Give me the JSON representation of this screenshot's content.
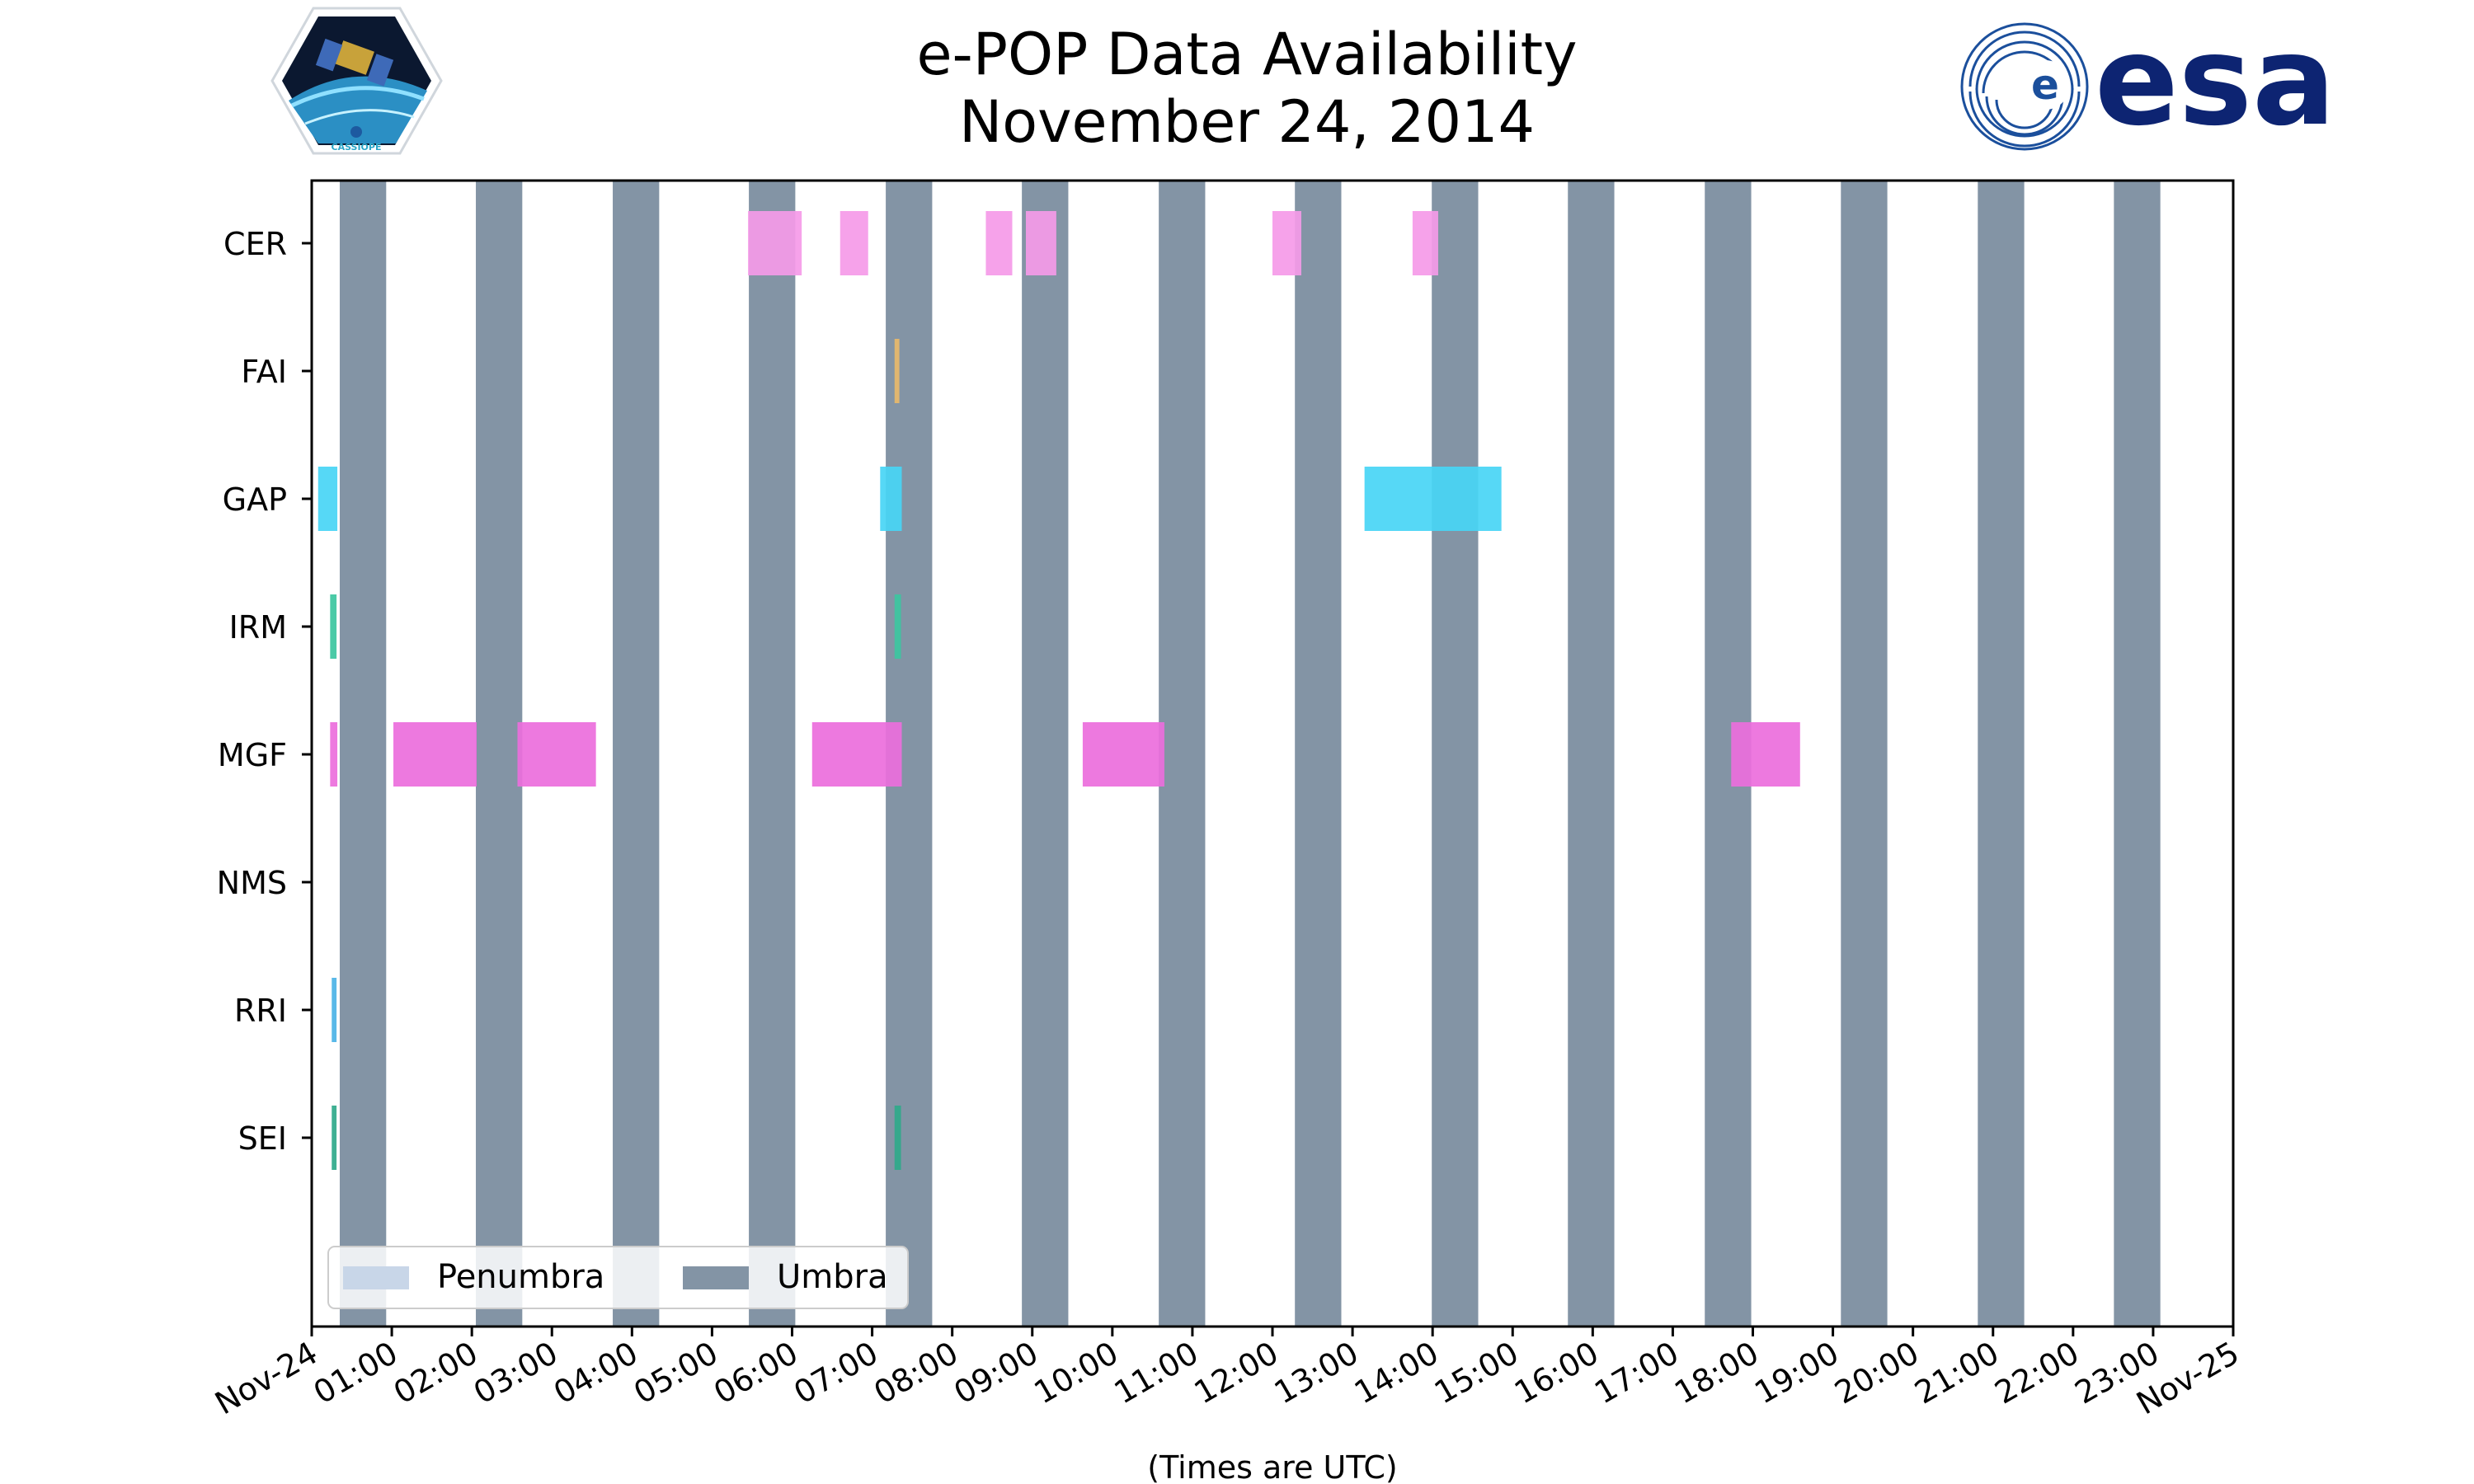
{
  "title_line1": "e-POP Data Availability",
  "title_line2": "November 24, 2014",
  "logos": {
    "left": {
      "icon": "cassiope-mission-patch-icon",
      "text": "CASSIOPE"
    },
    "right": {
      "icon": "esa-logo-icon",
      "text": "esa"
    }
  },
  "colors": {
    "umbra": "#8394a5",
    "penumbra": "#c8d6e8",
    "CER": "#f59ae8",
    "FAI": "#e8b86a",
    "GAP": "#48d5f5",
    "IRM": "#3cc6a0",
    "MGF": "#ec6edc",
    "RRI": "#4cb3e6",
    "SEI": "#2fa98a"
  },
  "chart_data": {
    "type": "timeline",
    "x_unit": "hours UTC",
    "xlim": [
      0,
      24
    ],
    "xlabel": "(Times are UTC)",
    "xtick_labels": [
      "Nov-24",
      "01:00",
      "02:00",
      "03:00",
      "04:00",
      "05:00",
      "06:00",
      "07:00",
      "08:00",
      "09:00",
      "10:00",
      "11:00",
      "12:00",
      "13:00",
      "14:00",
      "15:00",
      "16:00",
      "17:00",
      "18:00",
      "19:00",
      "20:00",
      "21:00",
      "22:00",
      "23:00",
      "Nov-25"
    ],
    "instruments": [
      "CER",
      "FAI",
      "GAP",
      "IRM",
      "MGF",
      "NMS",
      "RRI",
      "SEI"
    ],
    "umbra": [
      [
        0.35,
        0.93
      ],
      [
        2.05,
        2.63
      ],
      [
        3.76,
        4.34
      ],
      [
        5.46,
        6.04
      ],
      [
        7.17,
        7.75
      ],
      [
        8.87,
        9.45
      ],
      [
        10.58,
        11.16
      ],
      [
        12.28,
        12.86
      ],
      [
        13.99,
        14.57
      ],
      [
        15.69,
        16.27
      ],
      [
        17.4,
        17.98
      ],
      [
        19.1,
        19.68
      ],
      [
        20.81,
        21.39
      ],
      [
        22.51,
        23.09
      ]
    ],
    "penumbra": [],
    "segments": {
      "CER": [
        [
          5.45,
          6.12
        ],
        [
          6.6,
          6.95
        ],
        [
          8.42,
          8.75
        ],
        [
          8.92,
          9.3
        ],
        [
          12.0,
          12.36
        ],
        [
          13.75,
          14.07
        ]
      ],
      "FAI": [
        [
          7.28,
          7.34
        ]
      ],
      "GAP": [
        [
          0.08,
          0.32
        ],
        [
          7.1,
          7.37
        ]
      ],
      "GAP_extra": [
        [
          13.15,
          14.86
        ]
      ],
      "IRM": [
        [
          0.23,
          0.31
        ],
        [
          7.28,
          7.36
        ]
      ],
      "MGF": [
        [
          0.23,
          0.32
        ],
        [
          1.02,
          2.06
        ],
        [
          2.57,
          3.55
        ],
        [
          6.25,
          7.37
        ],
        [
          9.63,
          10.65
        ],
        [
          17.73,
          18.59
        ]
      ],
      "NMS": [],
      "RRI": [
        [
          0.25,
          0.31
        ]
      ],
      "SEI": [
        [
          0.25,
          0.31
        ],
        [
          7.28,
          7.36
        ]
      ]
    },
    "legend": [
      "Penumbra",
      "Umbra"
    ],
    "legend_position": "lower-left"
  }
}
